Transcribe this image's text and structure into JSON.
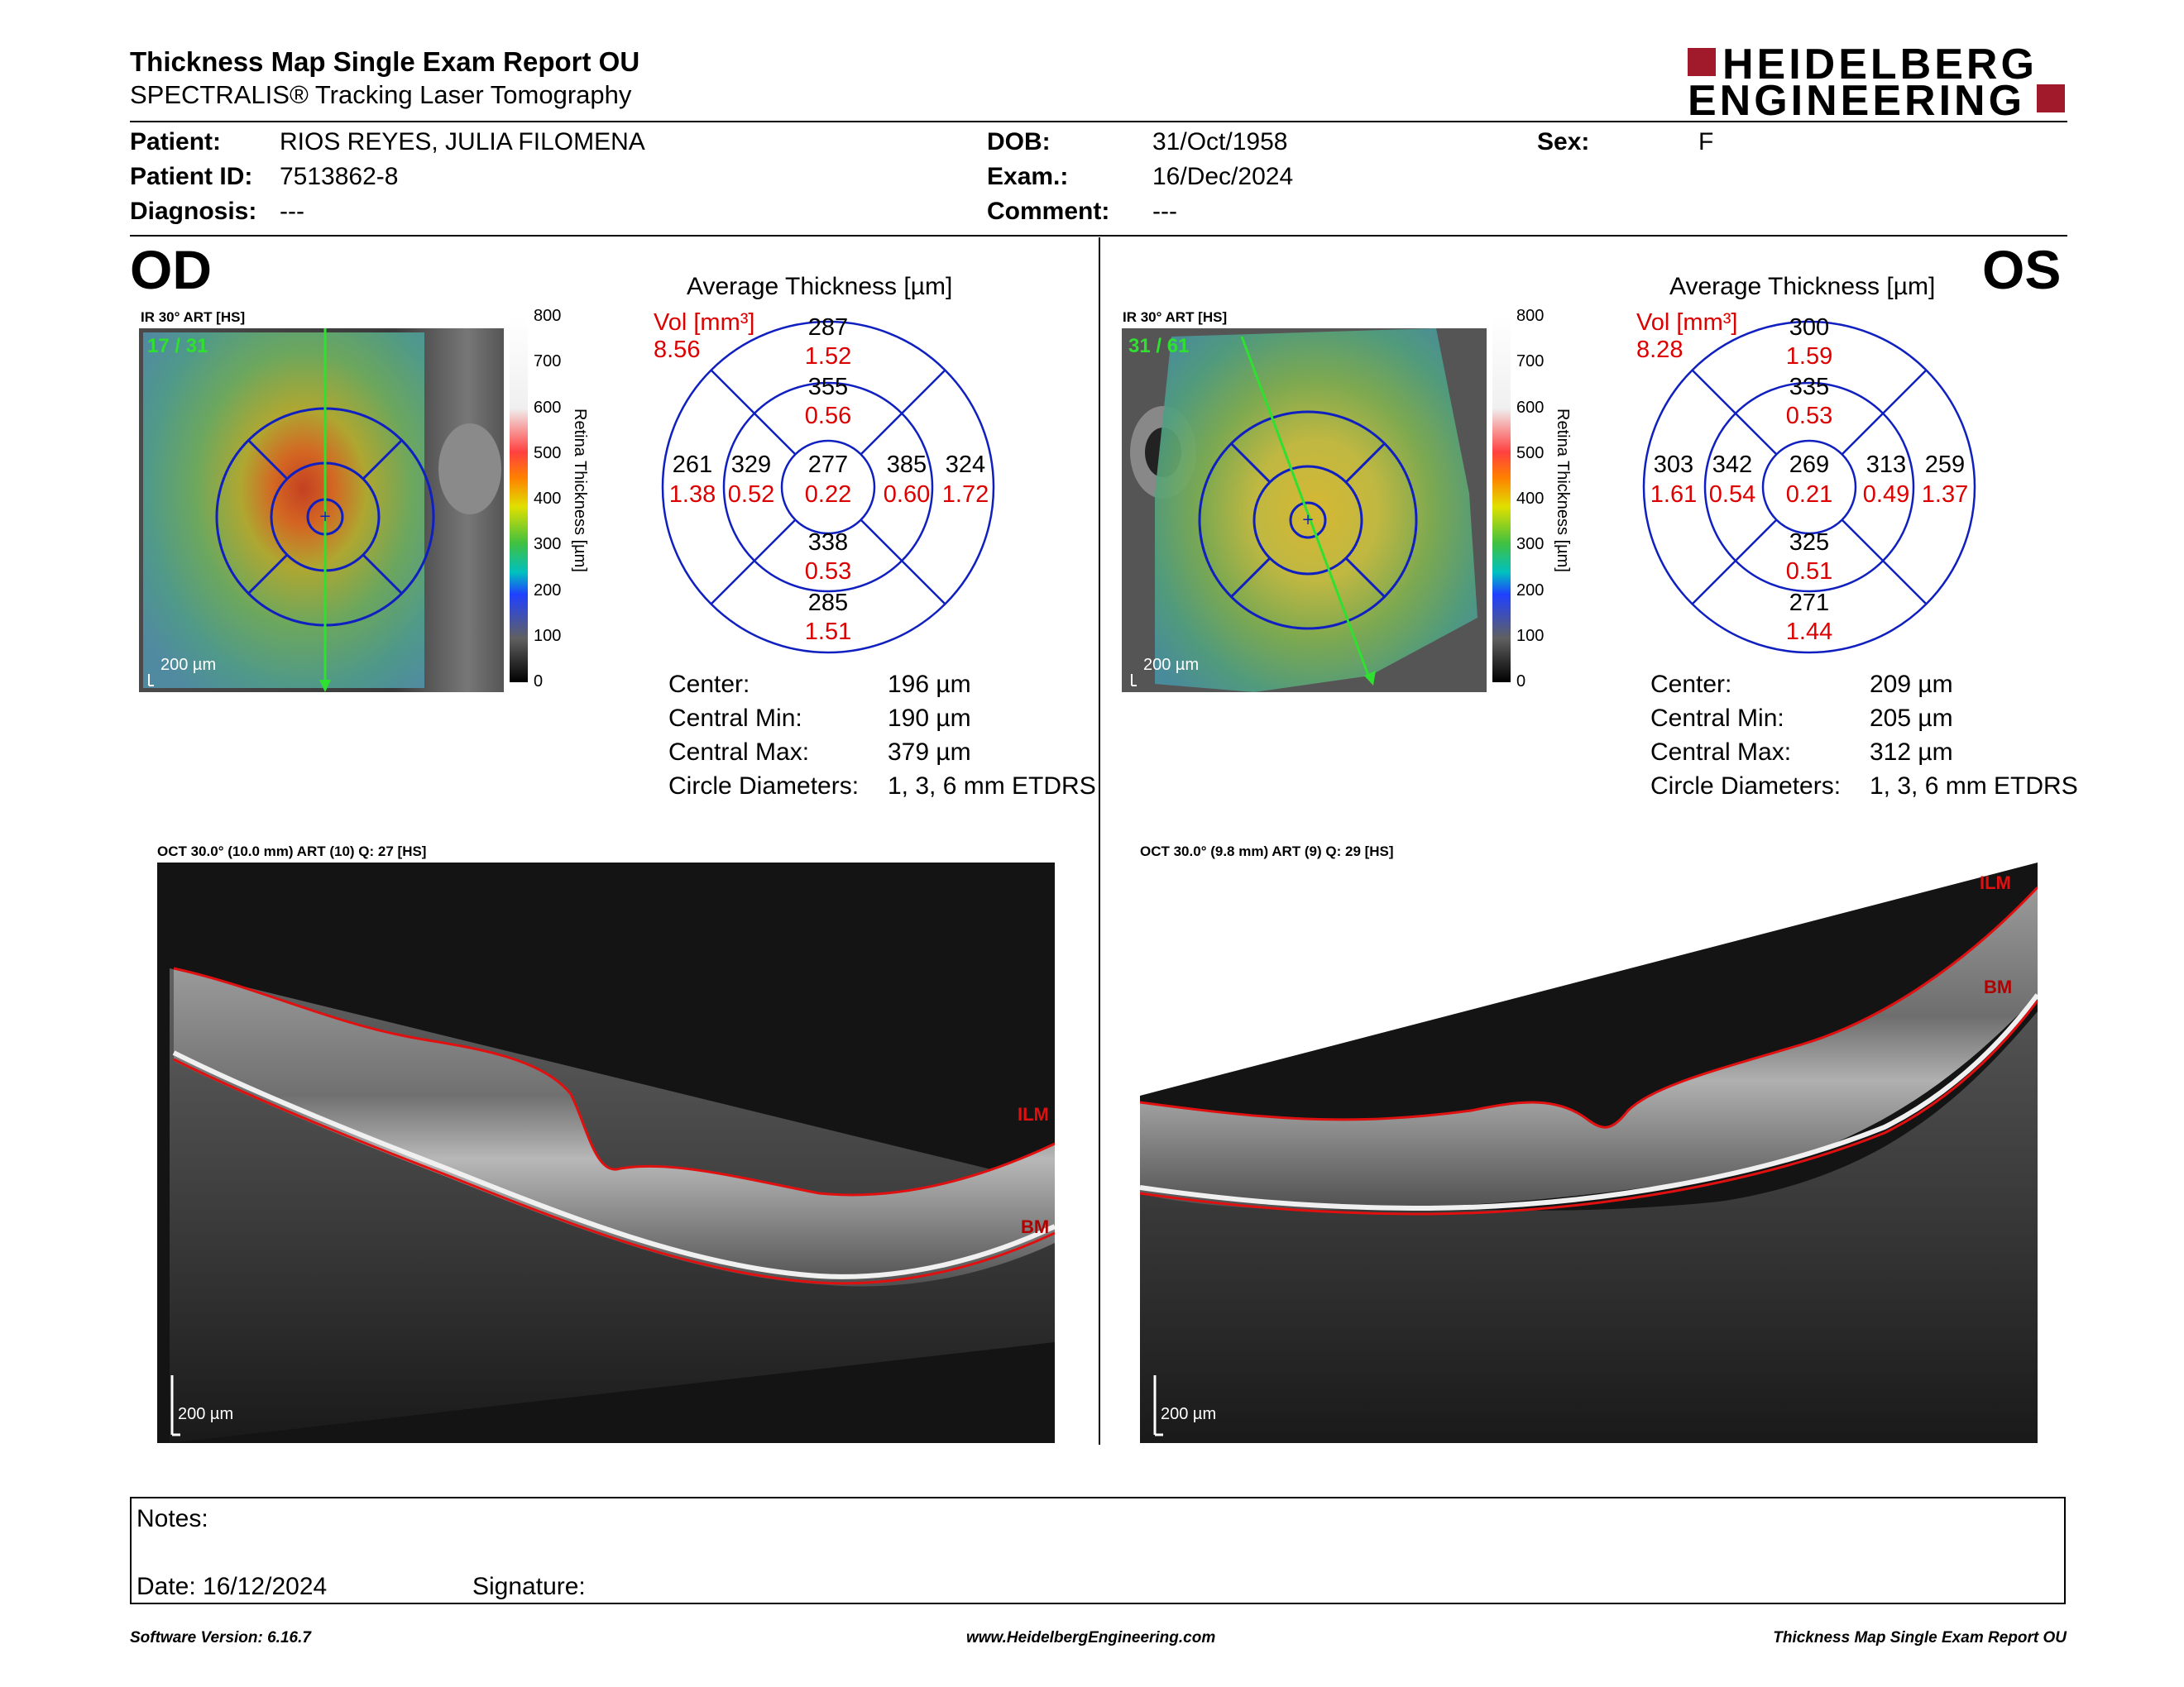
{
  "header": {
    "title": "Thickness Map Single Exam Report OU",
    "subtitle": "SPECTRALIS® Tracking Laser Tomography",
    "logo_line1": "HEIDELBERG",
    "logo_line2": "ENGINEERING",
    "logo_color": "#a01a2c"
  },
  "patient": {
    "patient_label": "Patient:",
    "patient": "RIOS REYES, JULIA FILOMENA",
    "id_label": "Patient ID:",
    "id": "7513862-8",
    "diagnosis_label": "Diagnosis:",
    "diagnosis": "---",
    "dob_label": "DOB:",
    "dob": "31/Oct/1958",
    "exam_label": "Exam.:",
    "exam": "16/Dec/2024",
    "comment_label": "Comment:",
    "comment": "---",
    "sex_label": "Sex:",
    "sex": "F"
  },
  "scale_ticks": [
    "800",
    "700",
    "600",
    "500",
    "400",
    "300",
    "200",
    "100",
    "0"
  ],
  "scale_title": "Retina Thickness [µm]",
  "avg_title": "Average Thickness [µm]",
  "vol_label": "Vol [mm³]",
  "stat_labels": {
    "center": "Center:",
    "min": "Central Min:",
    "max": "Central Max:",
    "diam": "Circle Diameters:"
  },
  "od": {
    "eye": "OD",
    "ir_label": "IR 30° ART [HS]",
    "ir_count": "17 / 31",
    "scalebar": "200 µm",
    "vol_total": "8.56",
    "grid": {
      "c": [
        "277",
        "0.22"
      ],
      "in": [
        "355",
        "0.56"
      ],
      "is": [
        "338",
        "0.53"
      ],
      "it": [
        "329",
        "0.52"
      ],
      "inn": [
        "385",
        "0.60"
      ],
      "on": [
        "287",
        "1.52"
      ],
      "os": [
        "285",
        "1.51"
      ],
      "ot": [
        "261",
        "1.38"
      ],
      "onn": [
        "324",
        "1.72"
      ]
    },
    "stats": {
      "center": "196 µm",
      "min": "190 µm",
      "max": "379 µm",
      "diam": "1, 3, 6 mm ETDRS"
    },
    "oct_label": "OCT 30.0° (10.0 mm) ART (10) Q: 27 [HS]",
    "oct_scalebar": "200 µm",
    "ilm": "ILM",
    "bm": "BM"
  },
  "os": {
    "eye": "OS",
    "ir_label": "IR 30° ART [HS]",
    "ir_count": "31 / 61",
    "scalebar": "200 µm",
    "vol_total": "8.28",
    "grid": {
      "c": [
        "269",
        "0.21"
      ],
      "in": [
        "335",
        "0.53"
      ],
      "is": [
        "325",
        "0.51"
      ],
      "it": [
        "342",
        "0.54"
      ],
      "inn": [
        "313",
        "0.49"
      ],
      "on": [
        "300",
        "1.59"
      ],
      "os": [
        "271",
        "1.44"
      ],
      "ot": [
        "303",
        "1.61"
      ],
      "onn": [
        "259",
        "1.37"
      ]
    },
    "stats": {
      "center": "209 µm",
      "min": "205 µm",
      "max": "312 µm",
      "diam": "1, 3, 6 mm ETDRS"
    },
    "oct_label": "OCT 30.0° (9.8 mm) ART (9) Q: 29 [HS]",
    "oct_scalebar": "200 µm",
    "ilm": "ILM",
    "bm": "BM"
  },
  "notes": {
    "notes_label": "Notes:",
    "date_label": "Date: 16/12/2024",
    "signature_label": "Signature:"
  },
  "footer": {
    "left": "Software Version: 6.16.7",
    "center": "www.HeidelbergEngineering.com",
    "right": "Thickness Map Single Exam Report OU"
  }
}
